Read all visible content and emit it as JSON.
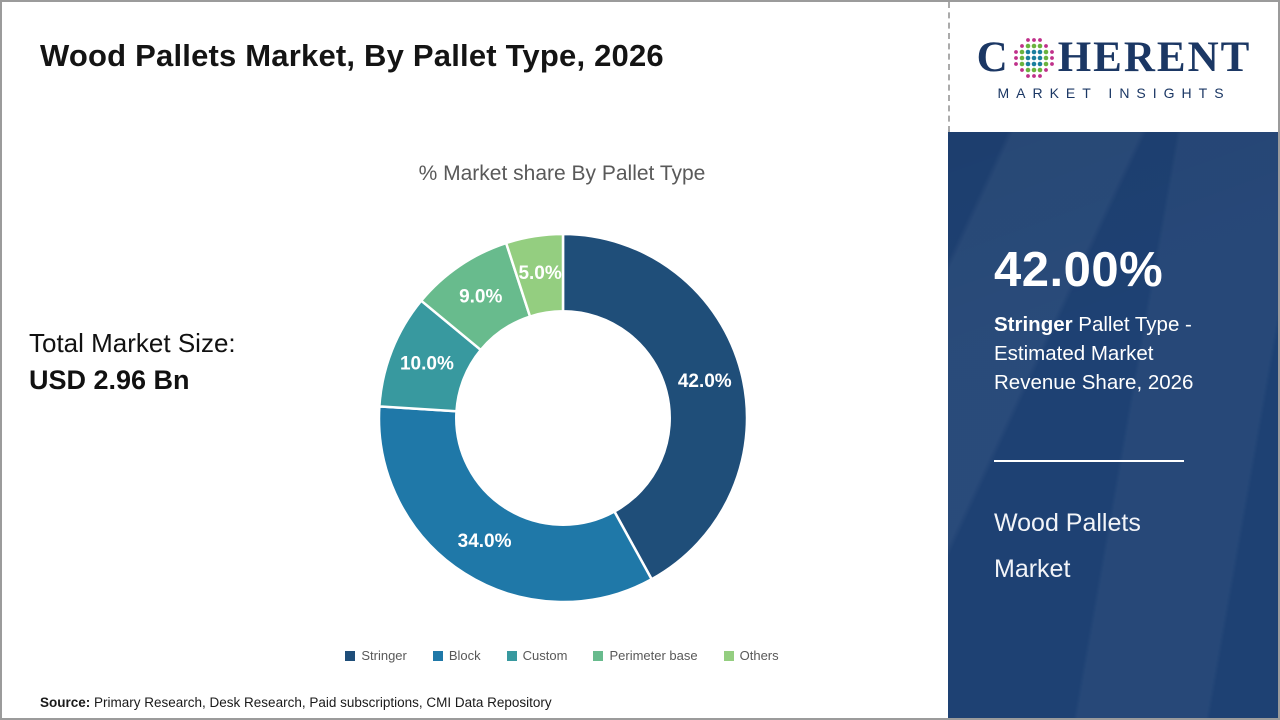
{
  "page": {
    "title": "Wood Pallets Market, By Pallet Type, 2026"
  },
  "logo": {
    "brand_first_letter": "C",
    "brand_rest": "HERENT",
    "tagline": "MARKET INSIGHTS"
  },
  "left_panel": {
    "total_label": "Total Market Size:",
    "total_value": "USD 2.96 Bn"
  },
  "chart_data": {
    "type": "pie",
    "subtype": "donut",
    "title": "% Market share By Pallet Type",
    "categories": [
      "Stringer",
      "Block",
      "Custom",
      "Perimeter base",
      "Others"
    ],
    "values": [
      42.0,
      34.0,
      10.0,
      9.0,
      5.0
    ],
    "labels": [
      "42.0%",
      "34.0%",
      "10.0%",
      "9.0%",
      "5.0%"
    ],
    "colors": [
      "#1f4e79",
      "#1f78a8",
      "#38999f",
      "#68bb8d",
      "#94ce80"
    ],
    "start_angle_deg": 0,
    "direction": "clockwise",
    "inner_radius_ratio": 0.58,
    "legend_position": "bottom",
    "label_color": "#ffffff"
  },
  "sidebar": {
    "bg_color": "#1e4173",
    "stat_value": "42.00%",
    "stat_desc_bold": "Stringer",
    "stat_desc_rest": " Pallet Type - Estimated Market Revenue Share, 2026",
    "market_name": "Wood Pallets Market"
  },
  "source": {
    "label": "Source:",
    "text": " Primary Research, Desk Research, Paid subscriptions, CMI Data Repository"
  }
}
